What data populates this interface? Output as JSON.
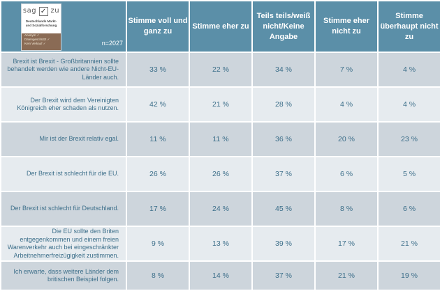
{
  "logo": {
    "brand_left": "sag",
    "brand_check": "✓",
    "brand_right": "zu",
    "subtitle_line1": "Deutschlands Markt-",
    "subtitle_line2": "und Sozialforschung",
    "foot_line1": "Anonym ✓",
    "foot_line2": "Datengeschützt ✓",
    "foot_line3": "Kein Verkauf ✓"
  },
  "sample_size": "n=2027",
  "colors": {
    "header_bg": "#5b8fa8",
    "row_odd_bg": "#cdd5dc",
    "row_even_bg": "#e6ebef",
    "text": "#3d6f8a"
  },
  "chart_data": {
    "type": "table",
    "columns": [
      "Stimme voll und ganz zu",
      "Stimme eher zu",
      "Teils teils/weiß nicht/Keine Angabe",
      "Stimme eher nicht zu",
      "Stimme überhaupt nicht zu"
    ],
    "rows": [
      {
        "statement": "Brexit ist Brexit - Großbritannien sollte behandelt werden wie andere Nicht-EU-Länder auch.",
        "lines": [
          "Brexit ist Brexit - Großbritannien sollte",
          "behandelt werden wie andere Nicht-EU-",
          "Länder auch."
        ],
        "values": [
          "33 %",
          "22 %",
          "34 %",
          "7 %",
          "4 %"
        ]
      },
      {
        "statement": "Der Brexit wird dem Vereinigten Königreich eher schaden als nutzen.",
        "lines": [
          "Der Brexit wird dem Vereinigten",
          "Königreich eher schaden als nutzen."
        ],
        "values": [
          "42 %",
          "21 %",
          "28 %",
          "4 %",
          "4 %"
        ]
      },
      {
        "statement": "Mir ist der Brexit relativ egal.",
        "lines": [
          "Mir ist der Brexit relativ egal."
        ],
        "values": [
          "11 %",
          "11 %",
          "36 %",
          "20 %",
          "23 %"
        ]
      },
      {
        "statement": "Der Brexit ist schlecht für die EU.",
        "lines": [
          "Der Brexit ist schlecht für die EU."
        ],
        "values": [
          "26 %",
          "26 %",
          "37 %",
          "6 %",
          "5 %"
        ]
      },
      {
        "statement": "Der Brexit ist schlecht für Deutschland.",
        "lines": [
          "Der Brexit ist schlecht für Deutschland."
        ],
        "values": [
          "17 %",
          "24 %",
          "45 %",
          "8 %",
          "6 %"
        ]
      },
      {
        "statement": "Die EU sollte den Briten entgegenkommen und einem freien Warenverkehr auch bei eingeschränkter Arbeitnehmerfreizügigkeit zustimmen.",
        "lines": [
          "Die EU sollte den Briten",
          "entgegenkommen und einem freien",
          "Warenverkehr auch bei eingeschränkter",
          "Arbeitnehmerfreizügigkeit zustimmen."
        ],
        "values": [
          "9 %",
          "13 %",
          "39 %",
          "17 %",
          "21 %"
        ]
      },
      {
        "statement": "Ich erwarte, dass weitere Länder dem britischen Beispiel folgen.",
        "lines": [
          "Ich erwarte, dass weitere Länder dem",
          "britischen Beispiel folgen."
        ],
        "values": [
          "8 %",
          "14 %",
          "37 %",
          "21 %",
          "19 %"
        ]
      }
    ]
  }
}
